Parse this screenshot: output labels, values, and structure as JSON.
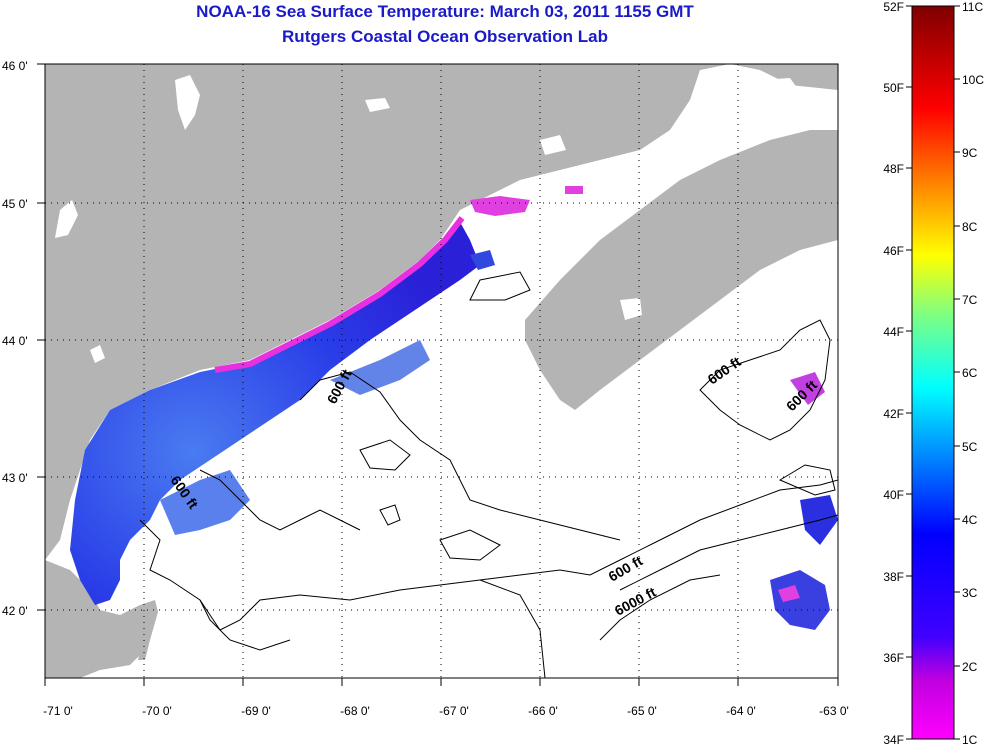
{
  "title_line1": "NOAA-16 Sea Surface Temperature:  March 03, 2011 1155 GMT",
  "title_line2": "Rutgers Coastal Ocean Observation Lab",
  "map": {
    "lon_ticks": [
      "-71 0'",
      "-70 0'",
      "-69 0'",
      "-68 0'",
      "-67 0'",
      "-66 0'",
      "-65 0'",
      "-64 0'",
      "-63 0'"
    ],
    "lat_ticks": [
      "46 0'",
      "45 0'",
      "44 0'",
      "43 0'",
      "42 0'"
    ],
    "contour_labels": [
      "600 ft",
      "600 ft",
      "600 ft",
      "600 ft",
      "6000 ft",
      "600 ft"
    ],
    "land_color": "#b4b4b4",
    "ocean_color": "#ffffff"
  },
  "colorbar": {
    "f_labels": [
      "52F",
      "50F",
      "48F",
      "46F",
      "44F",
      "42F",
      "40F",
      "38F",
      "36F",
      "34F"
    ],
    "c_labels": [
      "11C",
      "10C",
      "9C",
      "8C",
      "7C",
      "6C",
      "5C",
      "4C",
      "3C",
      "2C",
      "1C"
    ],
    "colors": [
      "#800000",
      "#ff0000",
      "#ff8000",
      "#ffff00",
      "#80ff80",
      "#00ffff",
      "#0080ff",
      "#0000ff",
      "#8000c0",
      "#ff00ff"
    ]
  }
}
